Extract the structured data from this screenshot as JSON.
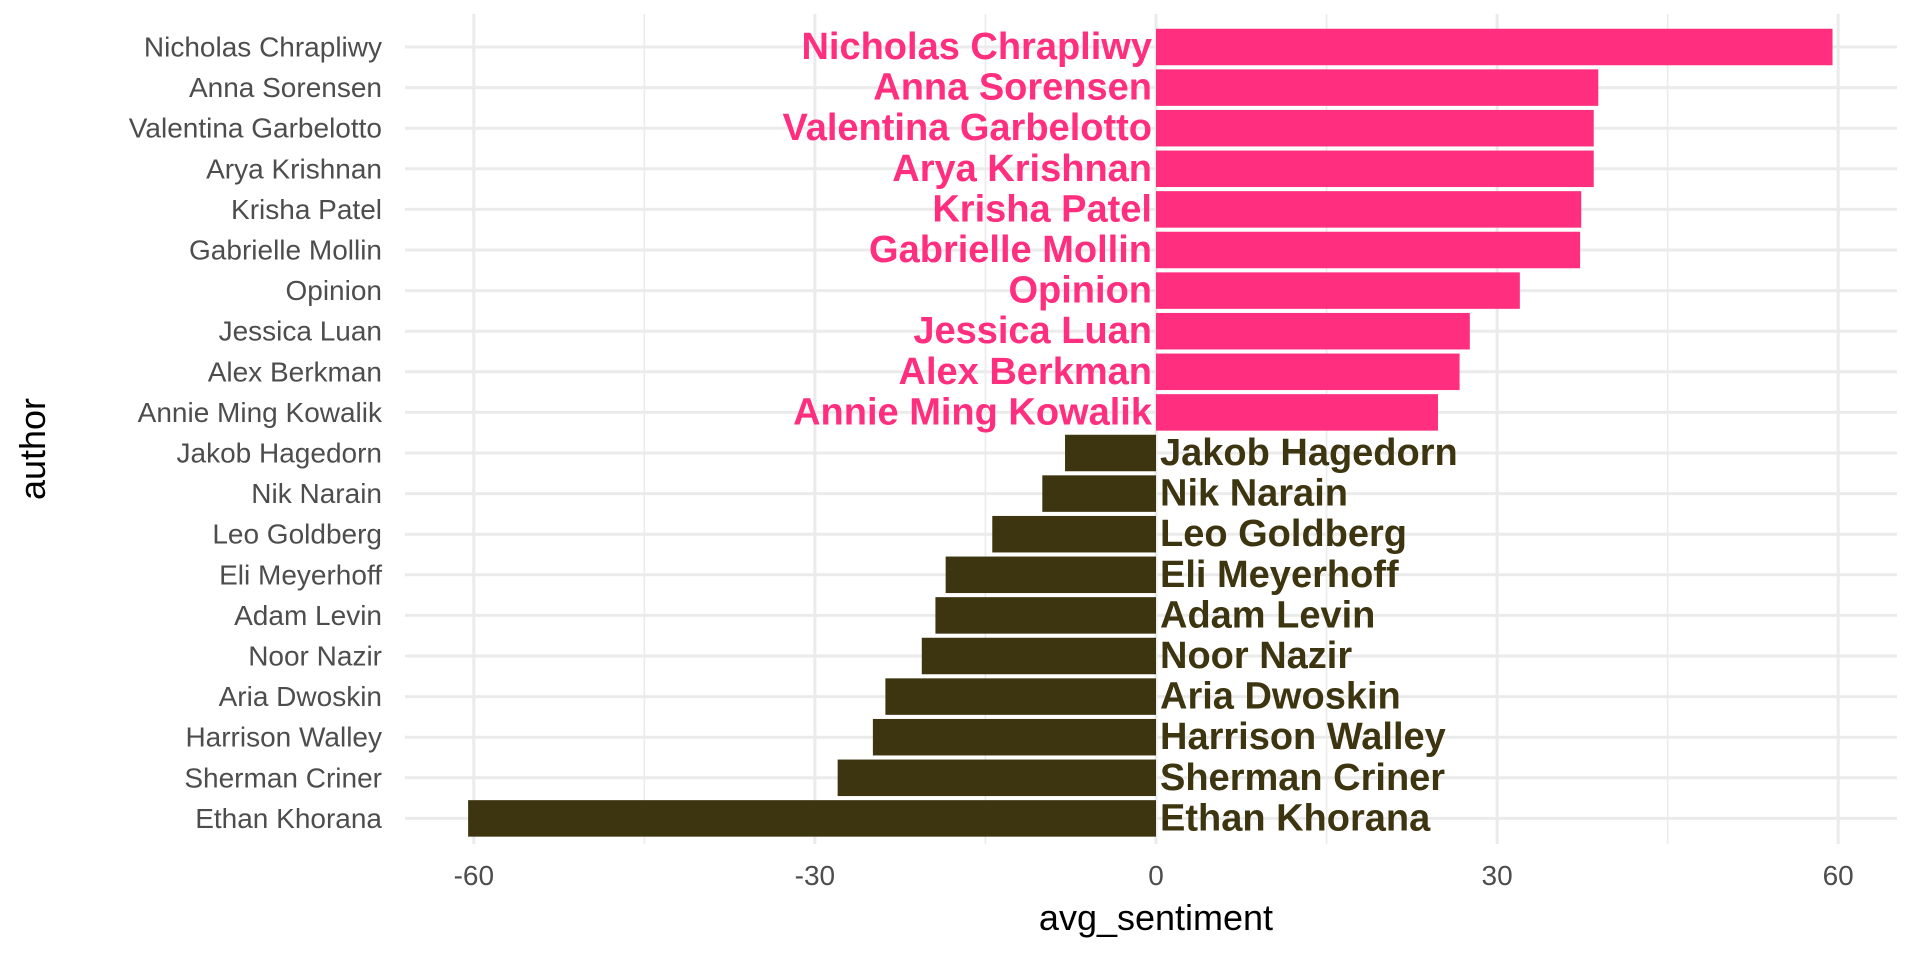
{
  "colors": {
    "positive": "#FF2E7E",
    "negative": "#3D3510",
    "grid": "#EBEBEB",
    "tick_text": "#4D4D4D"
  },
  "chart_data": {
    "type": "bar",
    "orientation": "horizontal",
    "title": "",
    "xlabel": "avg_sentiment",
    "ylabel": "author",
    "xlim": [
      -65,
      65
    ],
    "x_ticks": [
      -60,
      -30,
      0,
      30,
      60
    ],
    "x_tick_labels": [
      "-60",
      "-30",
      "0",
      "30",
      "60"
    ],
    "grid": true,
    "legend": "none",
    "categories": [
      "Nicholas Chrapliwy",
      "Anna Sorensen",
      "Valentina Garbelotto",
      "Arya Krishnan",
      "Krisha Patel",
      "Gabrielle Mollin",
      "Opinion",
      "Jessica Luan",
      "Alex Berkman",
      "Annie Ming Kowalik",
      "Jakob Hagedorn",
      "Nik Narain",
      "Leo Goldberg",
      "Eli Meyerhoff",
      "Adam Levin",
      "Noor Nazir",
      "Aria Dwoskin",
      "Harrison Walley",
      "Sherman Criner",
      "Ethan Khorana"
    ],
    "values": [
      59.5,
      38.9,
      38.5,
      38.5,
      37.4,
      37.3,
      32.0,
      27.6,
      26.7,
      24.8,
      -8.0,
      -10.0,
      -14.4,
      -18.5,
      -19.4,
      -20.6,
      -23.8,
      -24.9,
      -28.0,
      -60.5
    ]
  }
}
